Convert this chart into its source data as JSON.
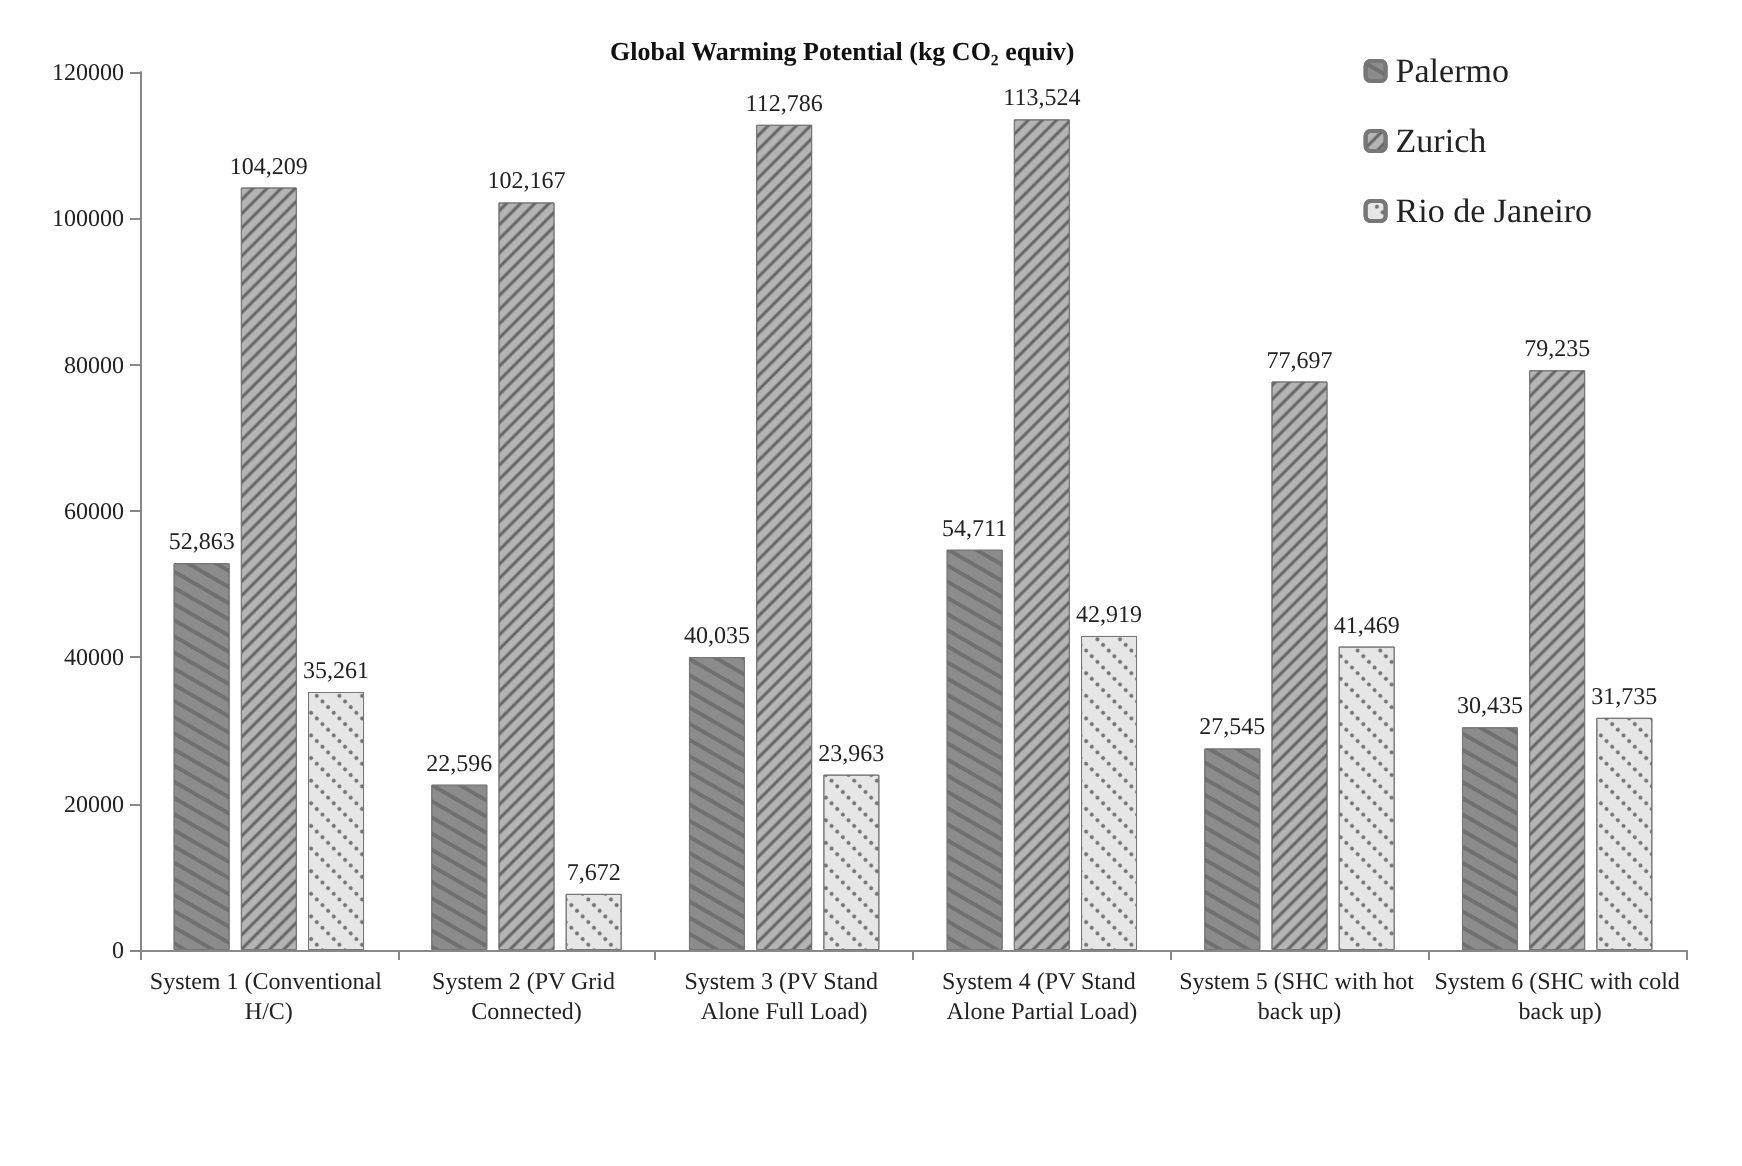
{
  "chart_data": {
    "type": "bar",
    "title": "Global Warming Potential (kg CO₂ equiv)",
    "categories": [
      "System 1 (Conventional H/C)",
      "System 2 (PV Grid Connected)",
      "System 3 (PV Stand Alone Full Load)",
      "System 4 (PV Stand Alone Partial Load)",
      "System 5 (SHC with hot back up)",
      "System 6 (SHC with cold back up)"
    ],
    "series": [
      {
        "name": "Palermo",
        "color": "#8c8c8c",
        "values": [
          52863,
          22596,
          40035,
          54711,
          27545,
          30435
        ],
        "value_labels": [
          "52,863",
          "22,596",
          "40,035",
          "54,711",
          "27,545",
          "30,435"
        ]
      },
      {
        "name": "Zurich",
        "color": "#b4b4b4",
        "values": [
          104209,
          102167,
          112786,
          113524,
          77697,
          79235
        ],
        "value_labels": [
          "104,209",
          "102,167",
          "112,786",
          "113,524",
          "77,697",
          "79,235"
        ]
      },
      {
        "name": "Rio de Janeiro",
        "color": "#e6e6e6",
        "values": [
          35261,
          7672,
          23963,
          42919,
          41469,
          31735
        ],
        "value_labels": [
          "35,261",
          "7,672",
          "23,963",
          "42,919",
          "41,469",
          "31,735"
        ]
      }
    ],
    "ylim": [
      0,
      120000
    ],
    "yticks": [
      0,
      20000,
      40000,
      60000,
      80000,
      100000,
      120000
    ],
    "grid": false,
    "legend": "top right"
  }
}
